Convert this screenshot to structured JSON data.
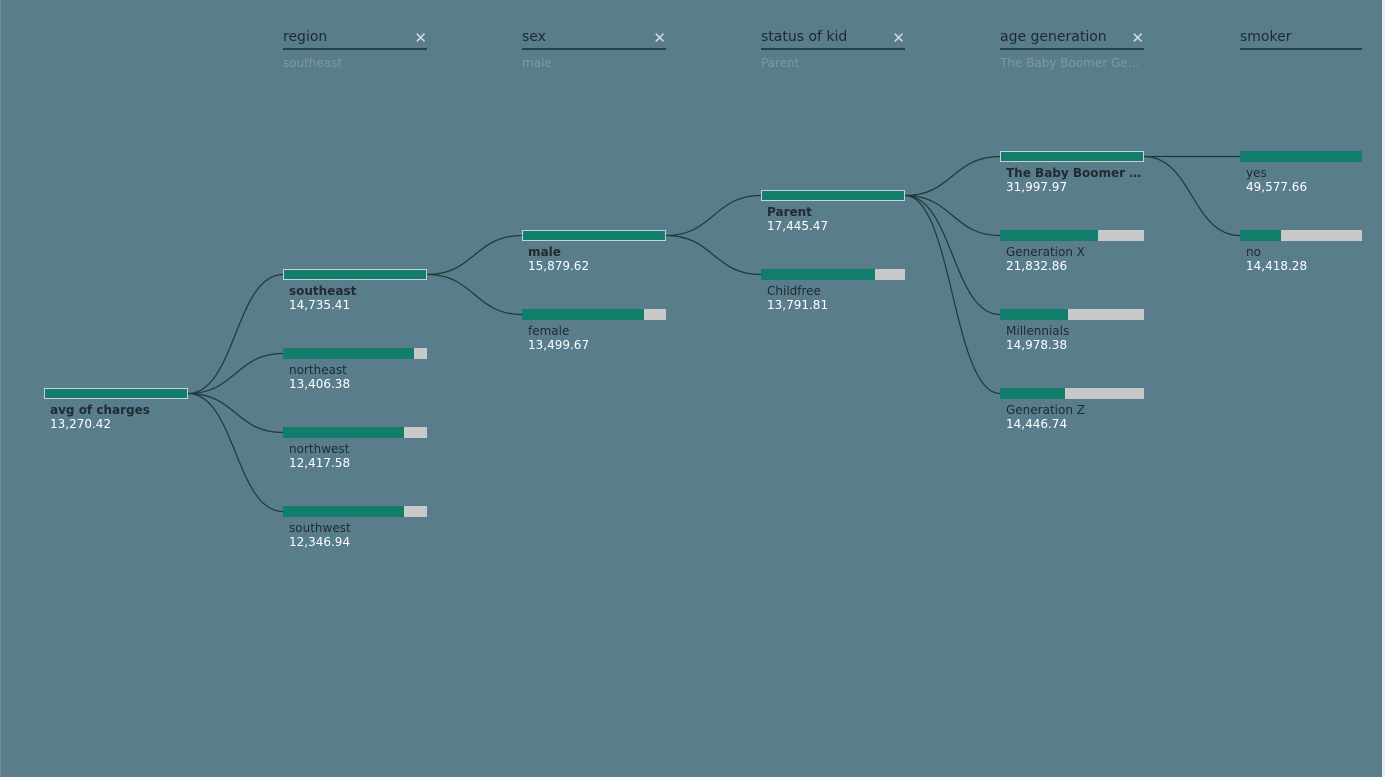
{
  "root": {
    "label": "avg of charges",
    "value": "13,270.42",
    "fill": 1.0
  },
  "levels": [
    {
      "title": "region",
      "selected": "southeast",
      "closable": true,
      "nodes": [
        {
          "label": "southeast",
          "value": "14,735.41",
          "fill": 1.0,
          "selected": true
        },
        {
          "label": "northeast",
          "value": "13,406.38",
          "fill": 0.91,
          "selected": false
        },
        {
          "label": "northwest",
          "value": "12,417.58",
          "fill": 0.84,
          "selected": false
        },
        {
          "label": "southwest",
          "value": "12,346.94",
          "fill": 0.84,
          "selected": false
        }
      ]
    },
    {
      "title": "sex",
      "selected": "male",
      "closable": true,
      "nodes": [
        {
          "label": "male",
          "value": "15,879.62",
          "fill": 1.0,
          "selected": true
        },
        {
          "label": "female",
          "value": "13,499.67",
          "fill": 0.85,
          "selected": false
        }
      ]
    },
    {
      "title": "status of kid",
      "selected": "Parent",
      "closable": true,
      "nodes": [
        {
          "label": "Parent",
          "value": "17,445.47",
          "fill": 1.0,
          "selected": true
        },
        {
          "label": "Childfree",
          "value": "13,791.81",
          "fill": 0.79,
          "selected": false
        }
      ]
    },
    {
      "title": "age generation",
      "selected": "The Baby Boomer Gen...",
      "closable": true,
      "nodes": [
        {
          "label": "The Baby Boomer Ge...",
          "value": "31,997.97",
          "fill": 1.0,
          "selected": true
        },
        {
          "label": "Generation X",
          "value": "21,832.86",
          "fill": 0.68,
          "selected": false
        },
        {
          "label": "Millennials",
          "value": "14,978.38",
          "fill": 0.47,
          "selected": false
        },
        {
          "label": "Generation Z",
          "value": "14,446.74",
          "fill": 0.45,
          "selected": false
        }
      ]
    },
    {
      "title": "smoker",
      "selected": "",
      "closable": false,
      "nodes": [
        {
          "label": "yes",
          "value": "49,577.66",
          "fill": 1.0,
          "selected": false
        },
        {
          "label": "no",
          "value": "14,418.28",
          "fill": 0.34,
          "selected": false
        }
      ]
    }
  ],
  "colors": {
    "background": "#5a7d8b",
    "bar_fill": "#127d6b",
    "bar_track": "#c8c8c8",
    "link": "#1d3a3a"
  },
  "icons": {
    "close": "close-icon"
  }
}
